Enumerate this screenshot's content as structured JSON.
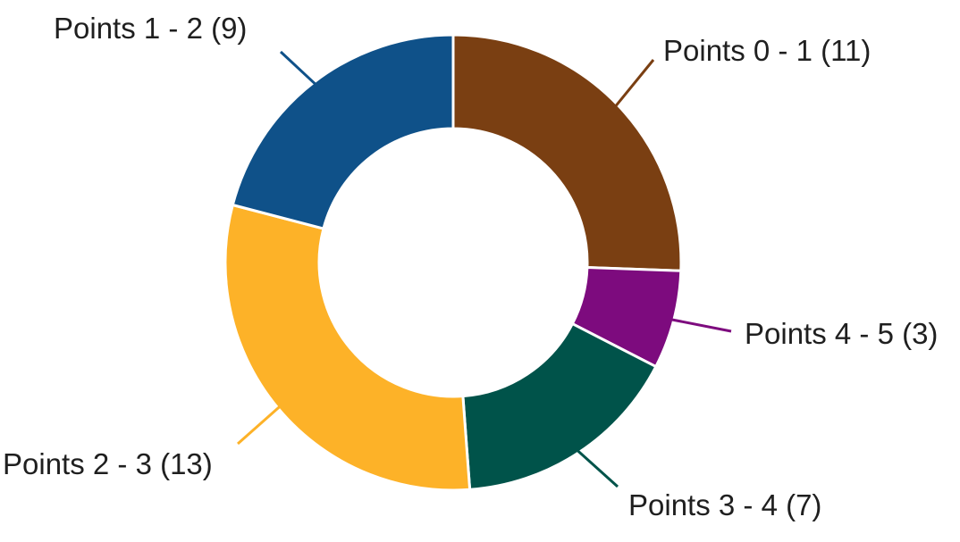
{
  "chart_data": {
    "type": "pie",
    "subtype": "donut",
    "title": "",
    "direction": "clockwise",
    "start_angle_deg": 0,
    "total": 43,
    "background": "#FFFFFF",
    "label_color": "#1F1F1F",
    "slice_separator_color": "#FFFFFF",
    "legend_position": "callout-labels",
    "categories": [
      "Points 0 - 1",
      "Points 4 - 5",
      "Points 3 - 4",
      "Points 2 - 3",
      "Points 1 - 2"
    ],
    "values": [
      11,
      3,
      7,
      13,
      9
    ],
    "segments": [
      {
        "label": "Points 0 - 1",
        "value": 11,
        "display": "Points 0 - 1 (11)",
        "color": "#7A3F12"
      },
      {
        "label": "Points 4 - 5",
        "value": 3,
        "display": "Points 4 - 5 (3)",
        "color": "#7D0B7E"
      },
      {
        "label": "Points 3 - 4",
        "value": 7,
        "display": "Points 3 - 4 (7)",
        "color": "#00534A"
      },
      {
        "label": "Points 2 - 3",
        "value": 13,
        "display": "Points 2 - 3 (13)",
        "color": "#FDB228"
      },
      {
        "label": "Points 1 - 2",
        "value": 9,
        "display": "Points 1 - 2 (9)",
        "color": "#0F5189"
      }
    ]
  }
}
